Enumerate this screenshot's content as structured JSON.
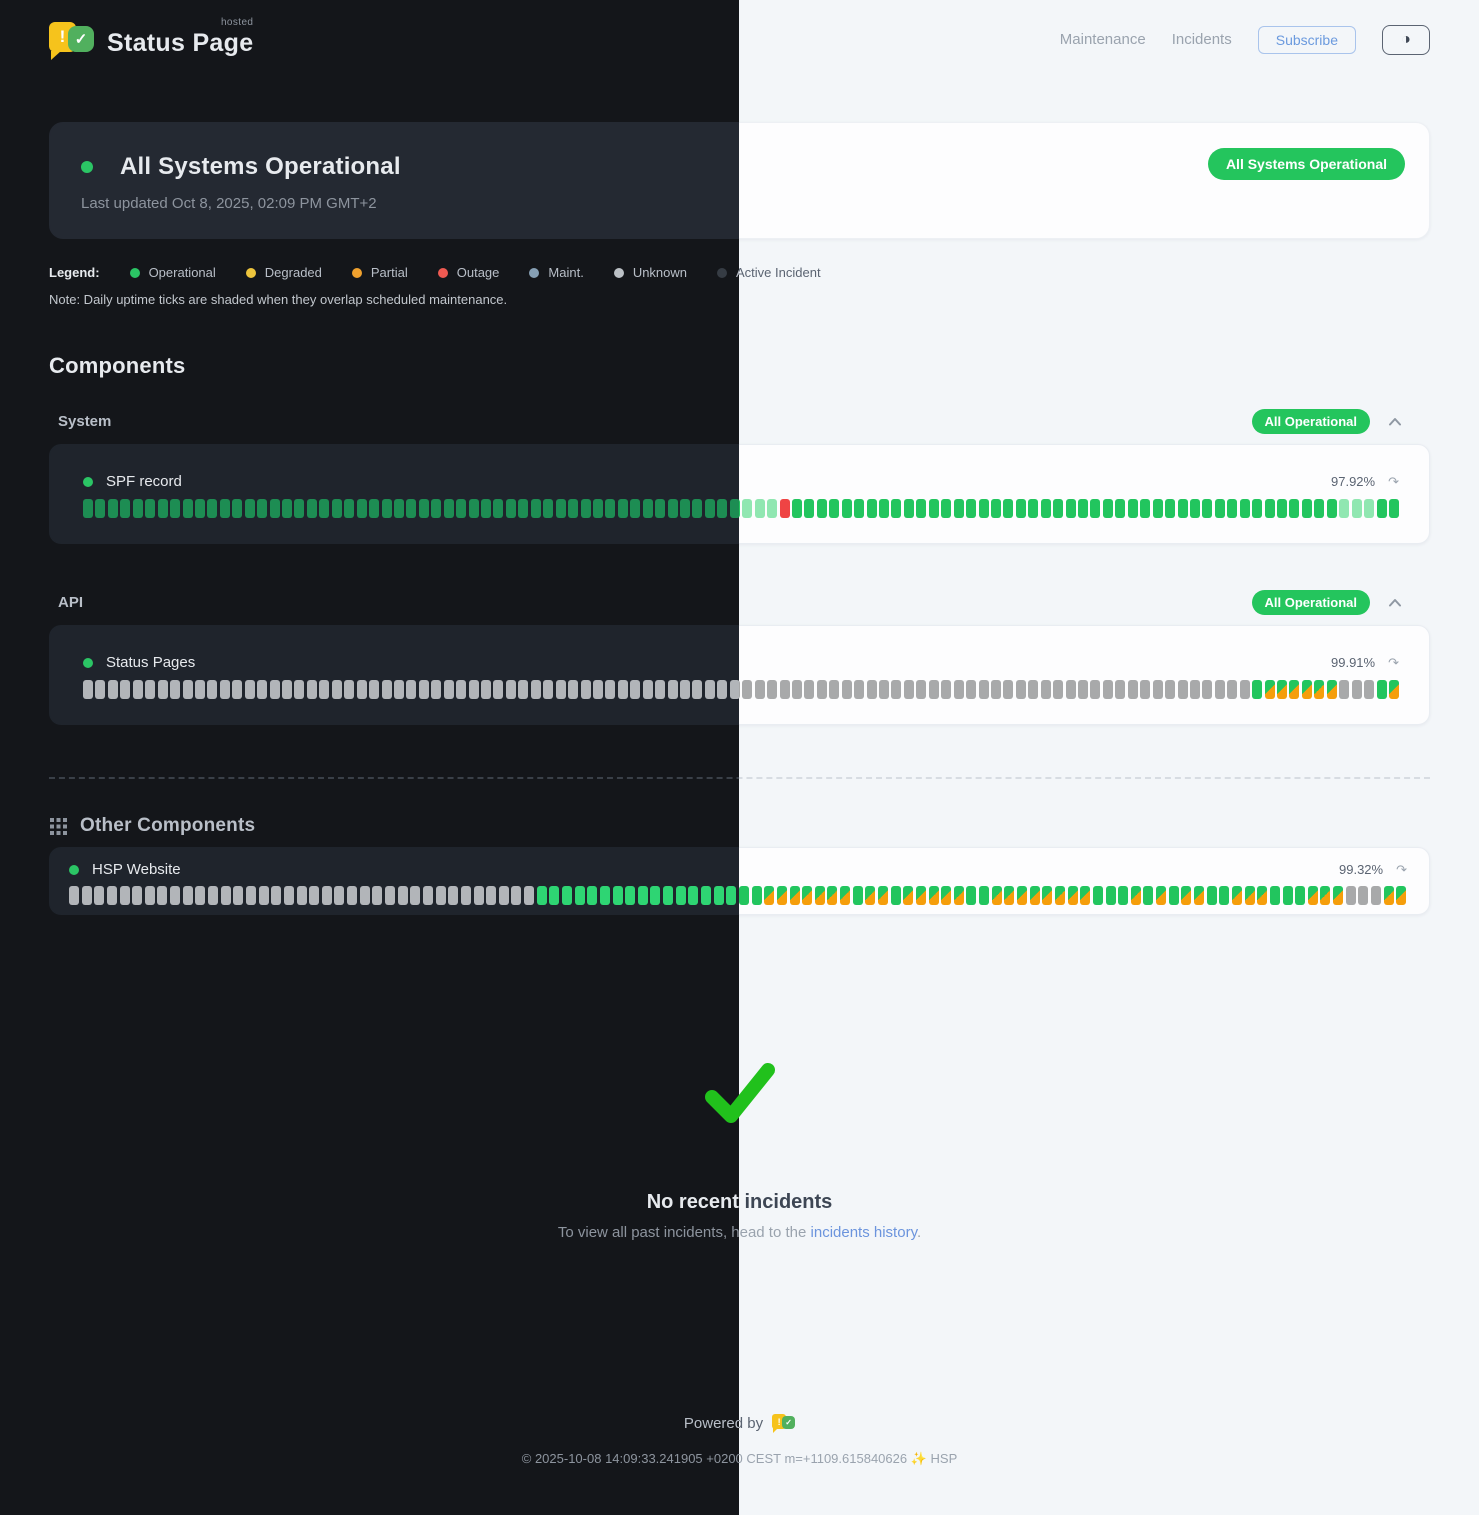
{
  "header": {
    "brand": {
      "title": "Status Page",
      "superscript": "hosted"
    },
    "nav": [
      {
        "label": "Maintenance"
      },
      {
        "label": "Incidents"
      }
    ],
    "subscribe_label": "Subscribe"
  },
  "icons": {
    "theme_toggle": "◑",
    "refresh": "↷",
    "check": "✓",
    "exclaim": "!"
  },
  "banner": {
    "title": "All Systems Operational",
    "last_updated": "Last updated Oct 8, 2025, 02:09 PM GMT+2",
    "badge": "All Systems Operational",
    "dot_color": "#2bc565"
  },
  "legend": {
    "label": "Legend:",
    "items": [
      {
        "label": "Operational",
        "color": "#2bc565"
      },
      {
        "label": "Degraded",
        "color": "#eec53d"
      },
      {
        "label": "Partial",
        "color": "#f0a12e"
      },
      {
        "label": "Outage",
        "color": "#ef5a52"
      },
      {
        "label": "Maint.",
        "color": "#87a0b5"
      },
      {
        "label": "Unknown",
        "color": "#bcc1c6"
      },
      {
        "label": "Active Incident",
        "color": "#363c44"
      }
    ],
    "note": "Note: Daily uptime ticks are shaded when they overlap scheduled maintenance."
  },
  "components": {
    "heading": "Components",
    "groups": [
      {
        "name": "System",
        "badge": "All Operational",
        "rows": [
          {
            "name": "SPF record",
            "dot": "#2bc565",
            "uptime": "97.92%",
            "ticks": [
              {
                "s": "up",
                "n": 53
              },
              {
                "s": "dim",
                "n": 3
              },
              {
                "s": "down",
                "n": 1
              },
              {
                "s": "up",
                "n": 44
              },
              {
                "s": "dim",
                "n": 3
              },
              {
                "s": "up",
                "n": 2
              }
            ]
          }
        ]
      },
      {
        "name": "API",
        "badge": "All Operational",
        "rows": [
          {
            "name": "Status Pages",
            "dot": "#2bc565",
            "uptime": "99.91%",
            "ticks": [
              {
                "s": "unknown",
                "n": 94
              },
              {
                "s": "up",
                "n": 1
              },
              {
                "s": "maint",
                "n": 6
              },
              {
                "s": "unknown",
                "n": 3
              },
              {
                "s": "up",
                "n": 1
              },
              {
                "s": "maint",
                "n": 1
              }
            ]
          }
        ]
      }
    ],
    "other": {
      "heading": "Other Components",
      "rows": [
        {
          "name": "HSP Website",
          "dot": "#2bc565",
          "uptime": "99.32%",
          "dark_up": "#2ed573",
          "ticks": [
            {
              "s": "unknown",
              "n": 37
            },
            {
              "s": "up",
              "n": 18
            },
            {
              "s": "maint",
              "n": 7
            },
            {
              "s": "up",
              "n": 1
            },
            {
              "s": "maint",
              "n": 2
            },
            {
              "s": "up",
              "n": 1
            },
            {
              "s": "maint",
              "n": 5
            },
            {
              "s": "up",
              "n": 2
            },
            {
              "s": "maint",
              "n": 8
            },
            {
              "s": "up",
              "n": 3
            },
            {
              "s": "maint",
              "n": 1
            },
            {
              "s": "up",
              "n": 1
            },
            {
              "s": "maint",
              "n": 1
            },
            {
              "s": "up",
              "n": 1
            },
            {
              "s": "maint",
              "n": 2
            },
            {
              "s": "up",
              "n": 2
            },
            {
              "s": "maint",
              "n": 3
            },
            {
              "s": "up",
              "n": 3
            },
            {
              "s": "maint",
              "n": 3
            },
            {
              "s": "unknown",
              "n": 3
            },
            {
              "s": "maint",
              "n": 2
            }
          ]
        }
      ]
    }
  },
  "incidents": {
    "title": "No recent incidents",
    "subtitle_prefix": "To view all past incidents, head to the ",
    "link_label": "incidents history",
    "subtitle_suffix": "."
  },
  "footer": {
    "powered_by": "Powered by",
    "copyright": "© 2025-10-08 14:09:33.241905 +0200 CEST m=+1109.615840626 ✨ HSP"
  },
  "colors": {
    "accent_green": "#22c55e",
    "badge_green": "#24c55d",
    "tick_down_red": "#ef4444",
    "tick_maint_orange": "#f59e0b",
    "link_blue": "#6b94dd"
  }
}
